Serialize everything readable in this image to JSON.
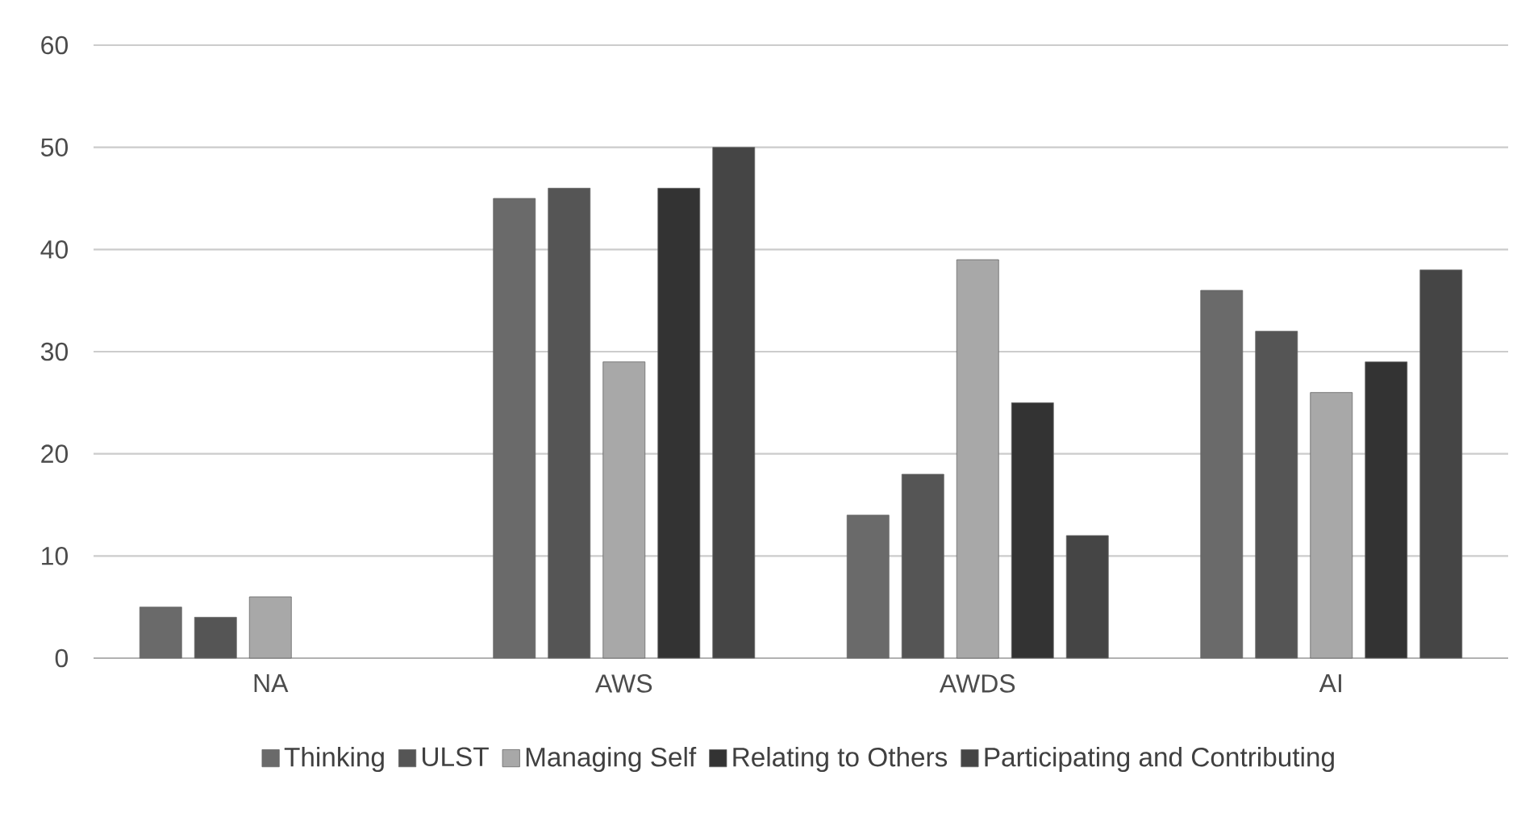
{
  "chart_data": {
    "type": "bar",
    "categories": [
      "NA",
      "AWS",
      "AWDS",
      "AI"
    ],
    "series": [
      {
        "name": "Thinking",
        "color": "#6a6a6a",
        "values": [
          5,
          45,
          14,
          36
        ]
      },
      {
        "name": "ULST",
        "color": "#555555",
        "values": [
          4,
          46,
          18,
          32
        ]
      },
      {
        "name": "Managing Self",
        "color": "#a8a8a8",
        "values": [
          6,
          29,
          39,
          26
        ]
      },
      {
        "name": "Relating to Others",
        "color": "#333333",
        "values": [
          null,
          46,
          25,
          29
        ]
      },
      {
        "name": "Participating and Contributing",
        "color": "#454545",
        "values": [
          null,
          50,
          12,
          38
        ]
      }
    ],
    "ylim": [
      0,
      60
    ],
    "yticks": [
      0,
      10,
      20,
      30,
      40,
      50,
      60
    ],
    "grid": "y",
    "legend": "bottom"
  }
}
